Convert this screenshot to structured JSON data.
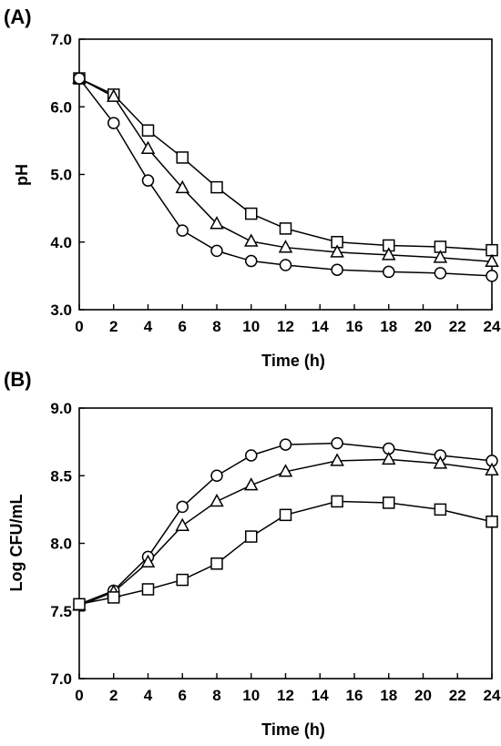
{
  "chart_data": [
    {
      "type": "line",
      "panel_label": "(A)",
      "xlabel": "Time (h)",
      "ylabel": "pH",
      "xlim": [
        0,
        24
      ],
      "ylim": [
        3.0,
        7.0
      ],
      "x_ticks": [
        "0",
        "2",
        "4",
        "6",
        "8",
        "10",
        "12",
        "14",
        "16",
        "18",
        "20",
        "22",
        "24"
      ],
      "y_ticks": [
        "3.0",
        "4.0",
        "5.0",
        "6.0",
        "7.0"
      ],
      "grid": false,
      "legend": "none",
      "series": [
        {
          "marker": "square",
          "x": [
            0,
            2,
            4,
            6,
            8,
            10,
            12,
            15,
            18,
            21,
            24
          ],
          "values": [
            6.42,
            6.18,
            5.65,
            5.25,
            4.81,
            4.42,
            4.2,
            4.0,
            3.95,
            3.93,
            3.88
          ]
        },
        {
          "marker": "triangle",
          "x": [
            0,
            2,
            4,
            6,
            8,
            10,
            12,
            15,
            18,
            21,
            24
          ],
          "values": [
            6.42,
            6.15,
            5.38,
            4.8,
            4.27,
            4.01,
            3.92,
            3.85,
            3.81,
            3.77,
            3.71
          ]
        },
        {
          "marker": "circle",
          "x": [
            0,
            2,
            4,
            6,
            8,
            10,
            12,
            15,
            18,
            21,
            24
          ],
          "values": [
            6.42,
            5.76,
            4.91,
            4.17,
            3.87,
            3.72,
            3.66,
            3.59,
            3.56,
            3.54,
            3.5
          ]
        }
      ]
    },
    {
      "type": "line",
      "panel_label": "(B)",
      "xlabel": "Time (h)",
      "ylabel": "Log CFU/mL",
      "xlim": [
        0,
        24
      ],
      "ylim": [
        7.0,
        9.0
      ],
      "x_ticks": [
        "0",
        "2",
        "4",
        "6",
        "8",
        "10",
        "12",
        "14",
        "16",
        "18",
        "20",
        "22",
        "24"
      ],
      "y_ticks": [
        "7.0",
        "7.5",
        "8.0",
        "8.5",
        "9.0"
      ],
      "grid": false,
      "legend": "none",
      "series": [
        {
          "marker": "circle",
          "x": [
            0,
            2,
            4,
            6,
            8,
            10,
            12,
            15,
            18,
            21,
            24
          ],
          "values": [
            7.55,
            7.65,
            7.9,
            8.27,
            8.5,
            8.65,
            8.73,
            8.74,
            8.7,
            8.65,
            8.61
          ]
        },
        {
          "marker": "triangle",
          "x": [
            0,
            2,
            4,
            6,
            8,
            10,
            12,
            15,
            18,
            21,
            24
          ],
          "values": [
            7.54,
            7.64,
            7.86,
            8.13,
            8.31,
            8.43,
            8.53,
            8.61,
            8.62,
            8.59,
            8.54
          ]
        },
        {
          "marker": "square",
          "x": [
            0,
            2,
            4,
            6,
            8,
            10,
            12,
            15,
            18,
            21,
            24
          ],
          "values": [
            7.55,
            7.6,
            7.66,
            7.73,
            7.85,
            8.05,
            8.21,
            8.31,
            8.3,
            8.25,
            8.16
          ]
        }
      ]
    }
  ]
}
